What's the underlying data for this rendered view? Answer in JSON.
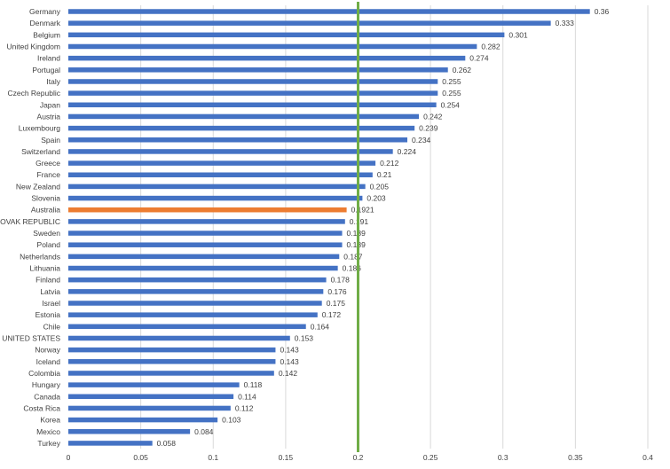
{
  "chart_data": {
    "type": "bar",
    "orientation": "horizontal",
    "categories": [
      "Germany",
      "Denmark",
      "Belgium",
      "United Kingdom",
      "Ireland",
      "Portugal",
      "Italy",
      "Czech Republic",
      "Japan",
      "Austria",
      "Luxembourg",
      "Spain",
      "Switzerland",
      "Greece",
      "France",
      "New Zealand",
      "Slovenia",
      "Australia",
      "SLOVAK REPUBLIC",
      "Sweden",
      "Poland",
      "Netherlands",
      "Lithuania",
      "Finland",
      "Latvia",
      "Israel",
      "Estonia",
      "Chile",
      "UNITED STATES",
      "Norway",
      "Iceland",
      "Colombia",
      "Hungary",
      "Canada",
      "Costa Rica",
      "Korea",
      "Mexico",
      "Turkey"
    ],
    "values": [
      0.36,
      0.333,
      0.301,
      0.282,
      0.274,
      0.262,
      0.255,
      0.255,
      0.254,
      0.242,
      0.239,
      0.234,
      0.224,
      0.212,
      0.21,
      0.205,
      0.203,
      0.1921,
      0.191,
      0.189,
      0.189,
      0.187,
      0.186,
      0.178,
      0.176,
      0.175,
      0.172,
      0.164,
      0.153,
      0.143,
      0.143,
      0.142,
      0.118,
      0.114,
      0.112,
      0.103,
      0.084,
      0.058
    ],
    "value_labels": [
      "0.36",
      "0.333",
      "0.301",
      "0.282",
      "0.274",
      "0.262",
      "0.255",
      "0.255",
      "0.254",
      "0.242",
      "0.239",
      "0.234",
      "0.224",
      "0.212",
      "0.21",
      "0.205",
      "0.203",
      "0.1921",
      "0.191",
      "0.189",
      "0.189",
      "0.187",
      "0.186",
      "0.178",
      "0.176",
      "0.175",
      "0.172",
      "0.164",
      "0.153",
      "0.143",
      "0.143",
      "0.142",
      "0.118",
      "0.114",
      "0.112",
      "0.103",
      "0.084",
      "0.058"
    ],
    "highlight_category": "Australia",
    "xlim": [
      0,
      0.4
    ],
    "xticks": [
      "0",
      "0.05",
      "0.1",
      "0.15",
      "0.2",
      "0.25",
      "0.3",
      "0.35",
      "0.4"
    ],
    "reference_line": 0.2,
    "grid": true,
    "title": "",
    "xlabel": "",
    "ylabel": "",
    "colors": {
      "bar": "#4472c4",
      "highlight": "#ed7d31",
      "reference_line": "#70ad47"
    }
  }
}
